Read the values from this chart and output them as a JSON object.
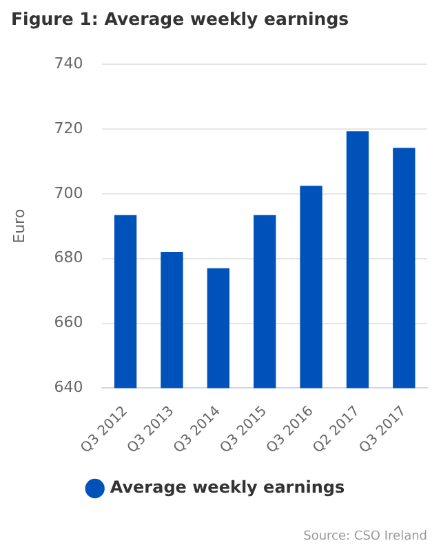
{
  "chart_data": {
    "type": "bar",
    "title": "Figure 1: Average weekly earnings",
    "ylabel": "Euro",
    "categories": [
      "Q3 2012",
      "Q3 2013",
      "Q3 2014",
      "Q3 2015",
      "Q3 2016",
      "Q2 2017",
      "Q3 2017"
    ],
    "series": [
      {
        "name": "Average weekly earnings",
        "color": "#0052bb",
        "values": [
          693.4,
          682.1,
          677,
          693.4,
          702.5,
          719.3,
          714.2
        ]
      }
    ],
    "ylim": [
      640,
      740
    ],
    "yticks": [
      640,
      660,
      680,
      700,
      720,
      740
    ],
    "grid": "y",
    "legend": "bottom",
    "marker": "circle",
    "annotations": [
      "Source: CSO Ireland"
    ]
  }
}
